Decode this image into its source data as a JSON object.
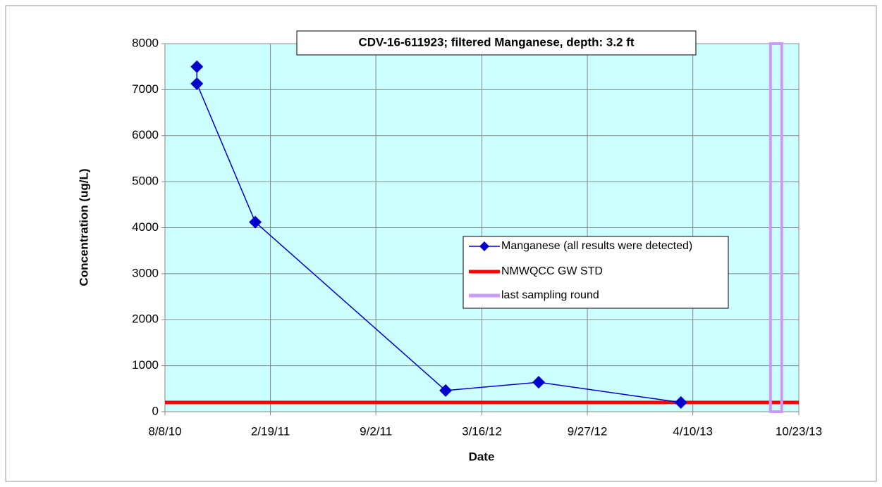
{
  "chart_data": {
    "type": "line",
    "title": "CDV-16-611923;  filtered Manganese, depth: 3.2 ft",
    "x_label": "Date",
    "y_label": "Concentration (ug/L)",
    "series": [
      {
        "name": "Manganese (all results were detected)",
        "color": "#0000cc",
        "x": [
          "10/6/10",
          "10/6/10",
          "1/22/11",
          "1/9/12",
          "6/29/12",
          "3/19/13"
        ],
        "values": [
          7500,
          7130,
          4120,
          460,
          640,
          200
        ]
      }
    ],
    "standard": {
      "name": "NMWQCC GW STD",
      "color": "#ff0000",
      "value": 200
    },
    "last_round": {
      "name": "last sampling round",
      "color": "#cc99ff",
      "x": "9/11/13"
    },
    "xlim": [
      "8/8/10",
      "10/23/13"
    ],
    "xticks": [
      "8/8/10",
      "2/19/11",
      "9/2/11",
      "3/16/12",
      "9/27/12",
      "4/10/13",
      "10/23/13"
    ],
    "ylim": [
      0,
      8000
    ],
    "yticks": [
      0,
      1000,
      2000,
      3000,
      4000,
      5000,
      6000,
      7000,
      8000
    ],
    "grid": true
  }
}
